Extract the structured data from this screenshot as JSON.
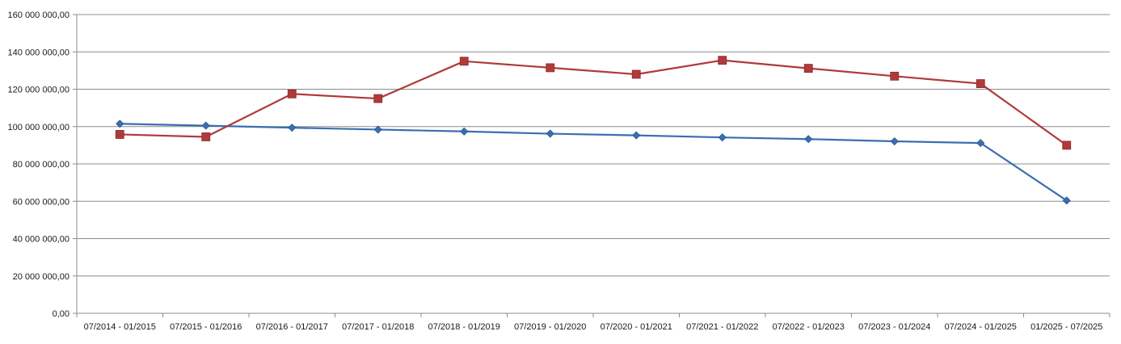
{
  "chart_data": {
    "type": "line",
    "title": "",
    "xlabel": "",
    "ylabel": "",
    "categories": [
      "07/2014 - 01/2015",
      "07/2015 - 01/2016",
      "07/2016 - 01/2017",
      "07/2017 - 01/2018",
      "07/2018 - 01/2019",
      "07/2019 - 01/2020",
      "07/2020 - 01/2021",
      "07/2021 - 01/2022",
      "07/2022 - 01/2023",
      "07/2023 - 01/2024",
      "07/2024 - 01/2025",
      "01/2025 - 07/2025"
    ],
    "ylim": [
      0,
      160000000
    ],
    "y_ticks": [
      0,
      20000000,
      40000000,
      60000000,
      80000000,
      100000000,
      120000000,
      140000000,
      160000000
    ],
    "y_tick_labels": [
      "0,00",
      "20 000 000,00",
      "40 000 000,00",
      "60 000 000,00",
      "80 000 000,00",
      "100 000 000,00",
      "120 000 000,00",
      "140 000 000,00",
      "160 000 000,00"
    ],
    "grid": true,
    "legend": "none",
    "series": [
      {
        "color": "#3a6fb0",
        "marker": "diamond",
        "values": [
          101500000,
          100500000,
          99400000,
          98400000,
          97400000,
          96200000,
          95300000,
          94200000,
          93300000,
          92100000,
          91200000,
          60400000
        ]
      },
      {
        "color": "#b03a3a",
        "marker": "square",
        "values": [
          95800000,
          94500000,
          117500000,
          115000000,
          135000000,
          131500000,
          128000000,
          135500000,
          131200000,
          127000000,
          123000000,
          90000000
        ]
      }
    ]
  }
}
